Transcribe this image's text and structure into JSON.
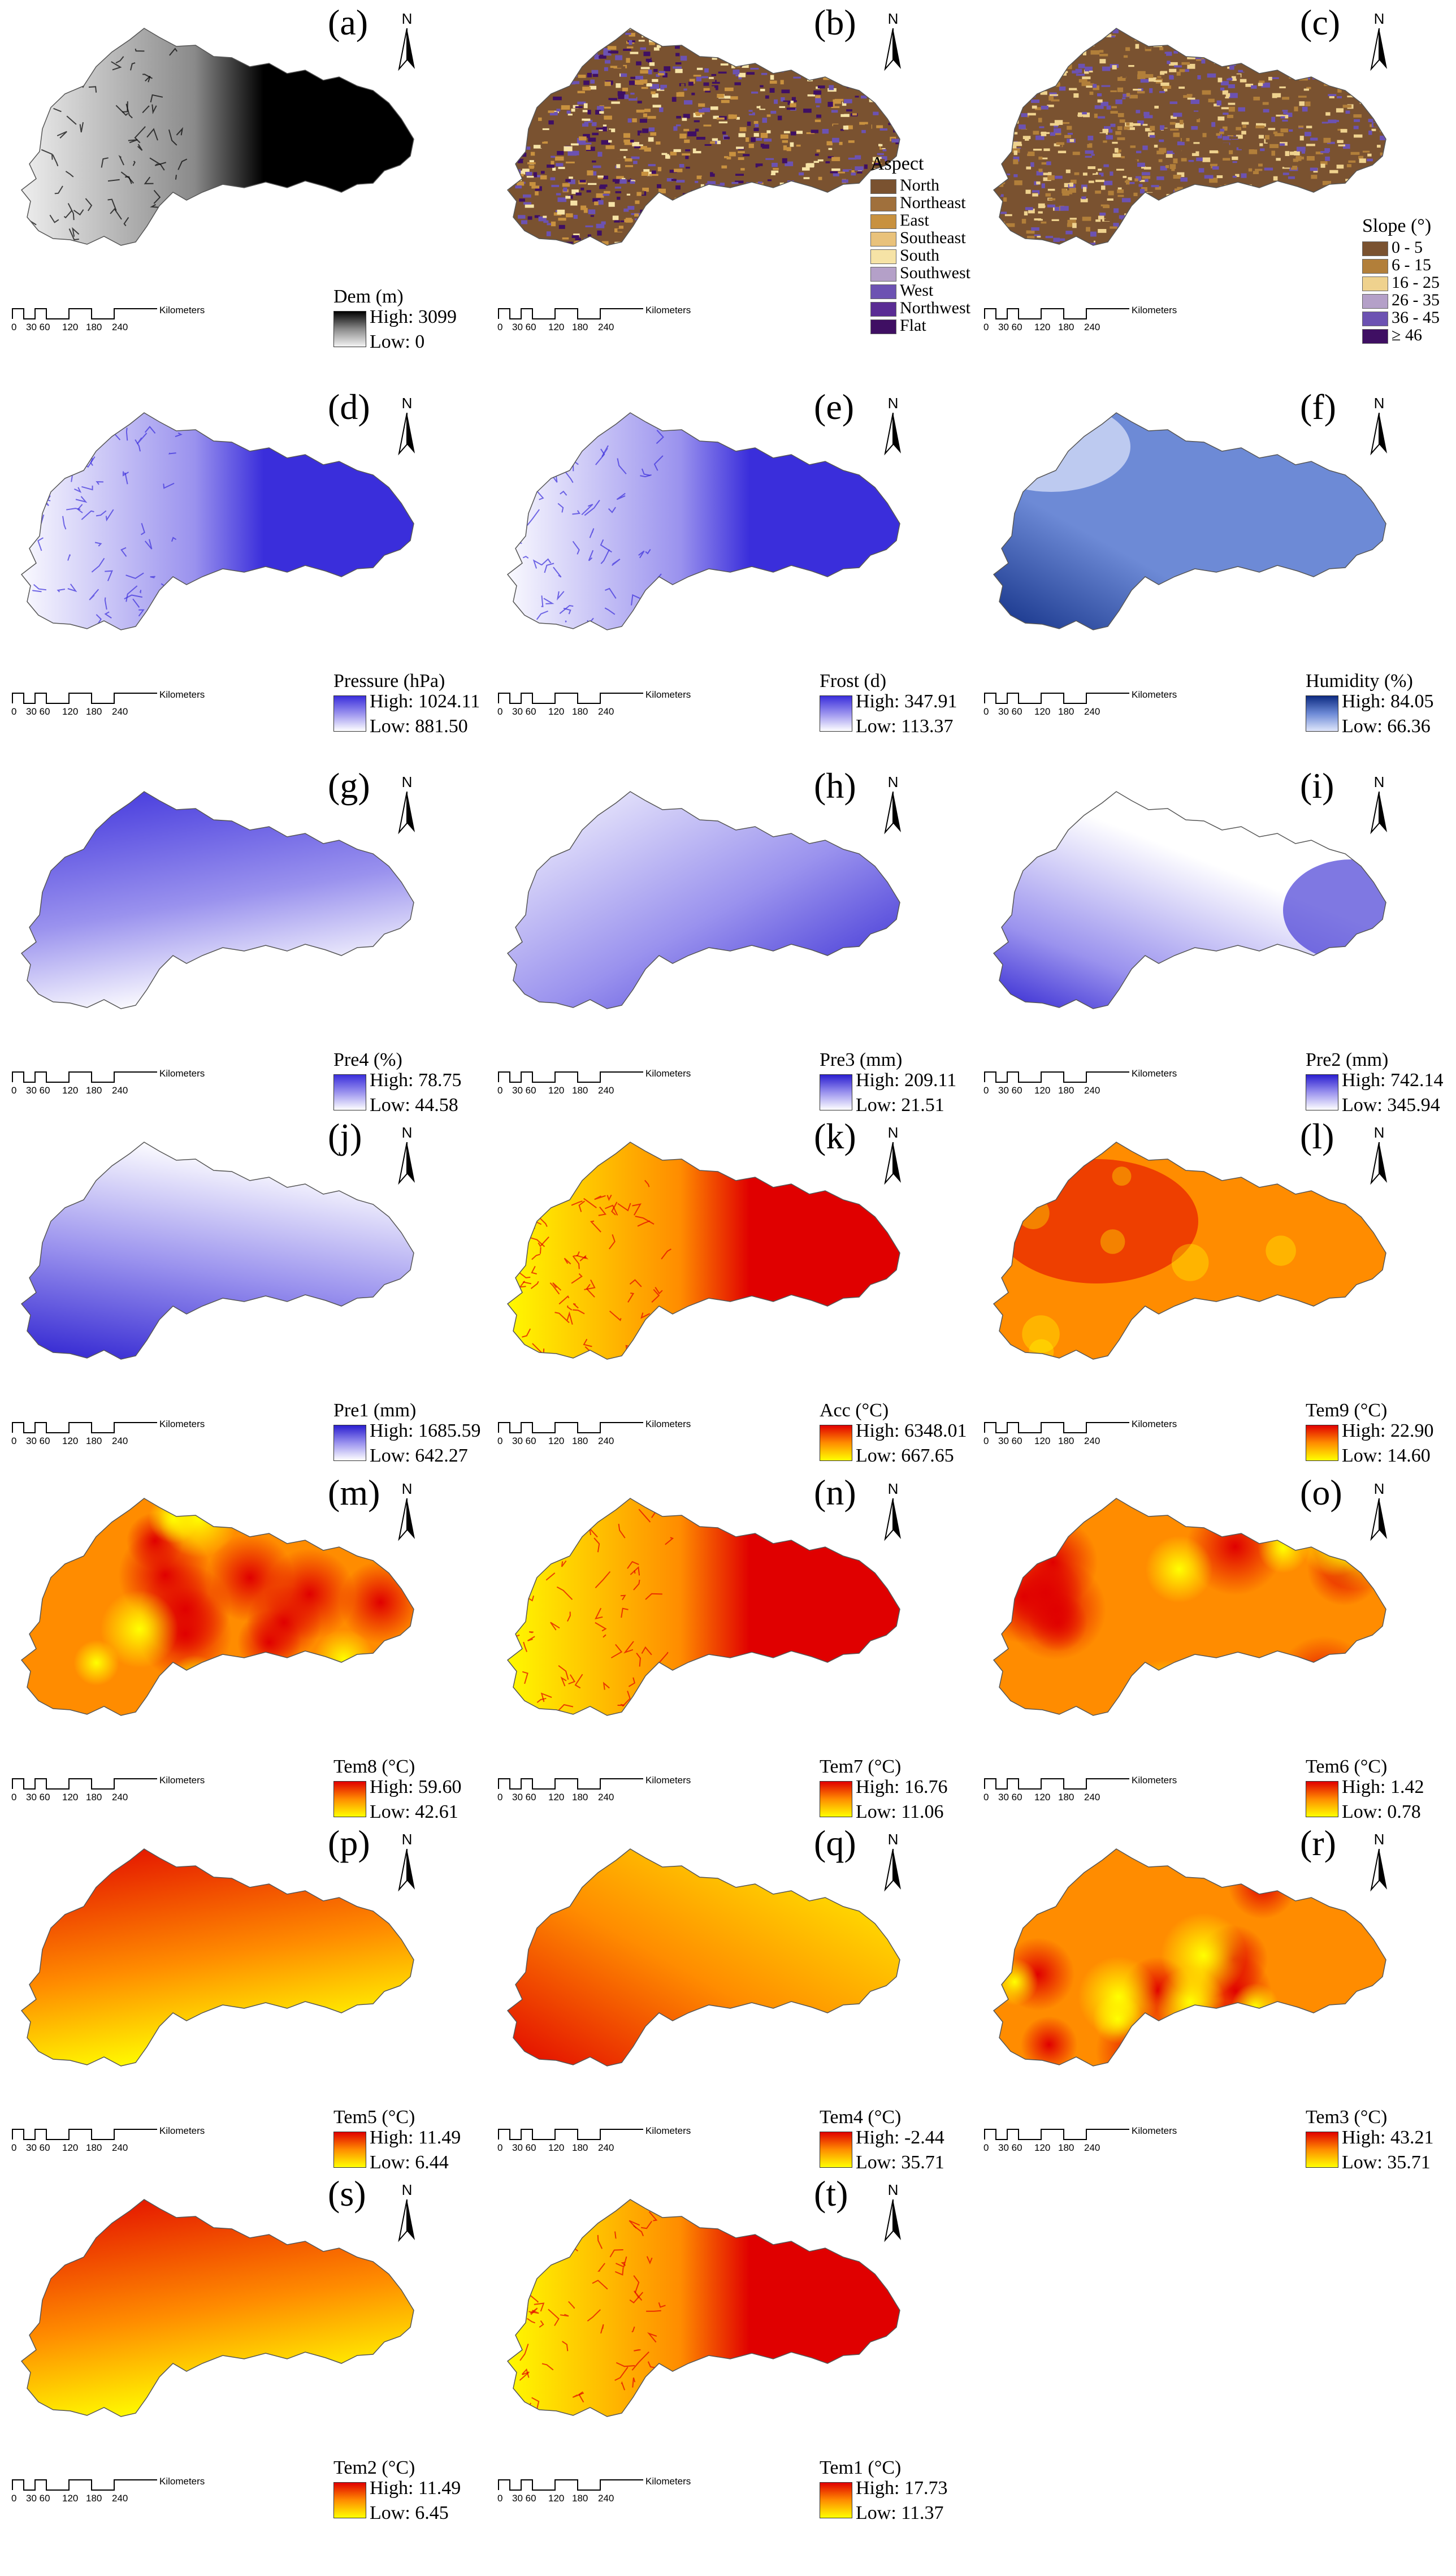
{
  "units_label": "Kilometers",
  "scale_ticks": [
    "0",
    "30 60",
    "120",
    "180",
    "240"
  ],
  "north_label": "N",
  "high_prefix": "High: ",
  "low_prefix": "Low: ",
  "panels": [
    {
      "letter": "(a)",
      "legend": {
        "type": "gradient",
        "title": "Dem (m)",
        "high": "3099",
        "low": "0"
      },
      "palette": [
        "#f4f4f4",
        "#8a8a8a",
        "#000000"
      ],
      "pattern": "dem"
    },
    {
      "letter": "(b)",
      "legend": {
        "type": "classes",
        "title": "Aspect",
        "classes": [
          {
            "label": "North",
            "color": "#7a5230"
          },
          {
            "label": "Northeast",
            "color": "#a0703c"
          },
          {
            "label": "East",
            "color": "#c8913f"
          },
          {
            "label": "Southeast",
            "color": "#e9c27b"
          },
          {
            "label": "South",
            "color": "#f6e3a6"
          },
          {
            "label": "Southwest",
            "color": "#b4a0c8"
          },
          {
            "label": "West",
            "color": "#6c52b2"
          },
          {
            "label": "Northwest",
            "color": "#5a2c94"
          },
          {
            "label": "Flat",
            "color": "#3f0f63"
          }
        ]
      },
      "palette": [
        "#7a5230",
        "#c8913f",
        "#f6e3a6",
        "#6c52b2",
        "#3f0f63"
      ],
      "pattern": "noise"
    },
    {
      "letter": "(c)",
      "legend": {
        "type": "classes",
        "title": "Slope (°)",
        "classes": [
          {
            "label": "0 - 5",
            "color": "#7a5230"
          },
          {
            "label": "6 - 15",
            "color": "#b27f3a"
          },
          {
            "label": "16 - 25",
            "color": "#efd28e"
          },
          {
            "label": "26 - 35",
            "color": "#b4a0c8"
          },
          {
            "label": "36 - 45",
            "color": "#6c52b2"
          },
          {
            "label": "≥ 46",
            "color": "#3f0f63"
          }
        ]
      },
      "palette": [
        "#7a5230",
        "#b27f3a",
        "#efd28e",
        "#6c52b2"
      ],
      "pattern": "noise"
    },
    {
      "letter": "(d)",
      "legend": {
        "type": "gradient",
        "title": "Pressure (hPa)",
        "high": "1024.11",
        "low": "881.50"
      },
      "palette": [
        "#ffffff",
        "#9a92ee",
        "#3a2edb"
      ],
      "pattern": "dem"
    },
    {
      "letter": "(e)",
      "legend": {
        "type": "gradient",
        "title": "Frost (d)",
        "high": "347.91",
        "low": "113.37"
      },
      "palette": [
        "#ffffff",
        "#9a92ee",
        "#3a2edb"
      ],
      "pattern": "dem"
    },
    {
      "letter": "(f)",
      "legend": {
        "type": "gradient",
        "title": "Humidity (%)",
        "high": "84.05",
        "low": "66.36"
      },
      "palette": [
        "#dfe6fb",
        "#6d8ad6",
        "#0d2b82"
      ],
      "pattern": "west"
    },
    {
      "letter": "(g)",
      "legend": {
        "type": "gradient",
        "title": "Pre4 (%)",
        "high": "78.75",
        "low": "44.58"
      },
      "palette": [
        "#ffffff",
        "#9a92ee",
        "#3a2edb"
      ],
      "pattern": "north"
    },
    {
      "letter": "(h)",
      "legend": {
        "type": "gradient",
        "title": "Pre3 (mm)",
        "high": "209.11",
        "low": "21.51"
      },
      "palette": [
        "#ffffff",
        "#9a92ee",
        "#2a1ecf"
      ],
      "pattern": "se"
    },
    {
      "letter": "(i)",
      "legend": {
        "type": "gradient",
        "title": "Pre2 (mm)",
        "high": "742.14",
        "low": "345.94"
      },
      "palette": [
        "#ffffff",
        "#9a92ee",
        "#2a1ecf"
      ],
      "pattern": "edges"
    },
    {
      "letter": "(j)",
      "legend": {
        "type": "gradient",
        "title": "Pre1 (mm)",
        "high": "1685.59",
        "low": "642.27"
      },
      "palette": [
        "#ffffff",
        "#9a92ee",
        "#2a1ecf"
      ],
      "pattern": "south"
    },
    {
      "letter": "(k)",
      "legend": {
        "type": "gradient",
        "title": "Acc (°C)",
        "high": "6348.01",
        "low": "667.65"
      },
      "palette": [
        "#ffff00",
        "#ff8c00",
        "#e00000"
      ],
      "pattern": "dem"
    },
    {
      "letter": "(l)",
      "legend": {
        "type": "gradient",
        "title": "Tem9 (°C)",
        "high": "22.90",
        "low": "14.60"
      },
      "palette": [
        "#ffff00",
        "#ff8c00",
        "#e00000"
      ],
      "pattern": "mixed"
    },
    {
      "letter": "(m)",
      "legend": {
        "type": "gradient",
        "title": "Tem8 (°C)",
        "high": "59.60",
        "low": "42.61"
      },
      "palette": [
        "#ffff00",
        "#ff8c00",
        "#e00000"
      ],
      "pattern": "blobs"
    },
    {
      "letter": "(n)",
      "legend": {
        "type": "gradient",
        "title": "Tem7 (°C)",
        "high": "16.76",
        "low": "11.06"
      },
      "palette": [
        "#ffff00",
        "#ff8c00",
        "#e00000"
      ],
      "pattern": "dem"
    },
    {
      "letter": "(o)",
      "legend": {
        "type": "gradient",
        "title": "Tem6 (°C)",
        "high": "1.42",
        "low": "0.78"
      },
      "palette": [
        "#ffff00",
        "#ff8c00",
        "#e00000"
      ],
      "pattern": "blobs"
    },
    {
      "letter": "(p)",
      "legend": {
        "type": "gradient",
        "title": "Tem5 (°C)",
        "high": "11.49",
        "low": "6.44"
      },
      "palette": [
        "#ffff00",
        "#ff8c00",
        "#e00000"
      ],
      "pattern": "north"
    },
    {
      "letter": "(q)",
      "legend": {
        "type": "gradient",
        "title": "Tem4 (°C)",
        "high": "-2.44",
        "low": "35.71"
      },
      "palette": [
        "#ffff00",
        "#ff8c00",
        "#e00000"
      ],
      "pattern": "southwest"
    },
    {
      "letter": "(r)",
      "legend": {
        "type": "gradient",
        "title": "Tem3 (°C)",
        "high": "43.21",
        "low": "35.71"
      },
      "palette": [
        "#ffff00",
        "#ff8c00",
        "#e00000"
      ],
      "pattern": "blobs"
    },
    {
      "letter": "(s)",
      "legend": {
        "type": "gradient",
        "title": "Tem2 (°C)",
        "high": "11.49",
        "low": "6.45"
      },
      "palette": [
        "#ffff00",
        "#ff8c00",
        "#e00000"
      ],
      "pattern": "north"
    },
    {
      "letter": "(t)",
      "legend": {
        "type": "gradient",
        "title": "Tem1 (°C)",
        "high": "17.73",
        "low": "11.37"
      },
      "palette": [
        "#ffff00",
        "#ff8c00",
        "#e00000"
      ],
      "pattern": "dem"
    }
  ]
}
